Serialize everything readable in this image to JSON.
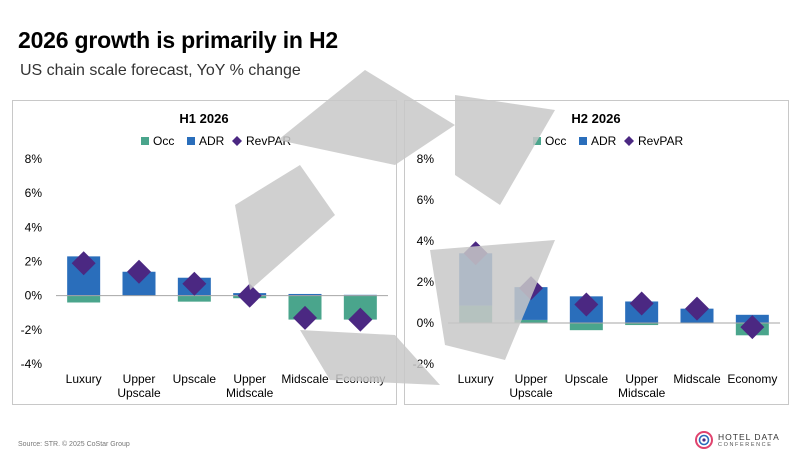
{
  "page": {
    "title": "2026 growth is primarily in H2",
    "subtitle": "US chain scale forecast, YoY % change",
    "source": "Source: STR. © 2025 CoStar Group",
    "logo_line1": "HOTEL DATA",
    "logo_line2": "CONFERENCE"
  },
  "colors": {
    "occ": "#4aa58c",
    "adr": "#2a6ebb",
    "revpar": "#4b2882",
    "axis": "#a6a6a6"
  },
  "chart_data": [
    {
      "type": "bar",
      "title": "H1 2026",
      "categories": [
        [
          "Luxury"
        ],
        [
          "Upper",
          "Upscale"
        ],
        [
          "Upscale"
        ],
        [
          "Upper",
          "Midscale"
        ],
        [
          "Midscale"
        ],
        [
          "Economy"
        ]
      ],
      "series": [
        {
          "name": "Occ",
          "kind": "stacked-bar",
          "values": [
            -0.4,
            0.0,
            -0.35,
            -0.15,
            -1.4,
            -1.4
          ]
        },
        {
          "name": "ADR",
          "kind": "stacked-bar",
          "values": [
            2.3,
            1.4,
            1.05,
            0.15,
            0.1,
            0.05
          ]
        },
        {
          "name": "RevPAR",
          "kind": "marker",
          "values": [
            1.9,
            1.4,
            0.7,
            0.0,
            -1.3,
            -1.4
          ]
        }
      ],
      "ylim": [
        -4,
        8
      ],
      "yticks": [
        -4,
        -2,
        0,
        2,
        4,
        6,
        8
      ],
      "ytick_labels": [
        "-4%",
        "-2%",
        "0%",
        "2%",
        "4%",
        "6%",
        "8%"
      ],
      "legend": "top"
    },
    {
      "type": "bar",
      "title": "H2 2026",
      "categories": [
        [
          "Luxury"
        ],
        [
          "Upper",
          "Upscale"
        ],
        [
          "Upscale"
        ],
        [
          "Upper",
          "Midscale"
        ],
        [
          "Midscale"
        ],
        [
          "Economy"
        ]
      ],
      "series": [
        {
          "name": "Occ",
          "kind": "stacked-bar",
          "values": [
            0.85,
            0.15,
            -0.35,
            -0.1,
            0.0,
            -0.6
          ]
        },
        {
          "name": "ADR",
          "kind": "stacked-bar",
          "values": [
            2.55,
            1.6,
            1.3,
            1.05,
            0.7,
            0.4
          ]
        },
        {
          "name": "RevPAR",
          "kind": "marker",
          "values": [
            3.4,
            1.7,
            0.9,
            0.95,
            0.7,
            -0.2
          ]
        }
      ],
      "ylim": [
        -2,
        8
      ],
      "yticks": [
        -2,
        0,
        2,
        4,
        6,
        8
      ],
      "ytick_labels": [
        "-2%",
        "0%",
        "2%",
        "4%",
        "6%",
        "8%"
      ],
      "legend": "top"
    }
  ]
}
